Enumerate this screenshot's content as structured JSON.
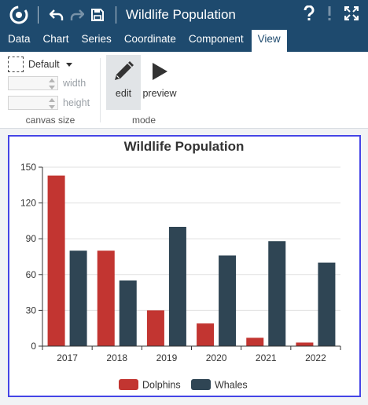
{
  "app": {
    "title": "Wildlife Population",
    "icons": [
      "logo-icon",
      "undo-icon",
      "redo-icon",
      "save-icon",
      "help-icon",
      "info-icon",
      "fullscreen-icon"
    ]
  },
  "menu": {
    "tabs": [
      {
        "label": "Data",
        "active": false
      },
      {
        "label": "Chart",
        "active": false
      },
      {
        "label": "Series",
        "active": false
      },
      {
        "label": "Coordinate",
        "active": false
      },
      {
        "label": "Component",
        "active": false
      },
      {
        "label": "View",
        "active": true
      }
    ]
  },
  "ribbon": {
    "canvas_size": {
      "preset": "Default",
      "width_label": "width",
      "height_label": "height",
      "width_value": "",
      "height_value": "",
      "group_label": "canvas size"
    },
    "mode": {
      "edit_label": "edit",
      "preview_label": "preview",
      "group_label": "mode",
      "active": "edit"
    }
  },
  "colors": {
    "header_bg": "#1e4a6e",
    "frame_border": "#4545e6",
    "dolphins": "#c23531",
    "whales": "#2f4554"
  },
  "chart_data": {
    "type": "bar",
    "title": "Wildlife Population",
    "categories": [
      "2017",
      "2018",
      "2019",
      "2020",
      "2021",
      "2022"
    ],
    "series": [
      {
        "name": "Dolphins",
        "values": [
          143,
          80,
          30,
          19,
          7,
          3
        ],
        "color": "#c23531"
      },
      {
        "name": "Whales",
        "values": [
          80,
          55,
          100,
          76,
          88,
          70
        ],
        "color": "#2f4554"
      }
    ],
    "y_ticks": [
      "0",
      "30",
      "60",
      "90",
      "120",
      "150"
    ],
    "ylim": [
      0,
      150
    ],
    "grid": true,
    "legend": "bottom-center"
  }
}
